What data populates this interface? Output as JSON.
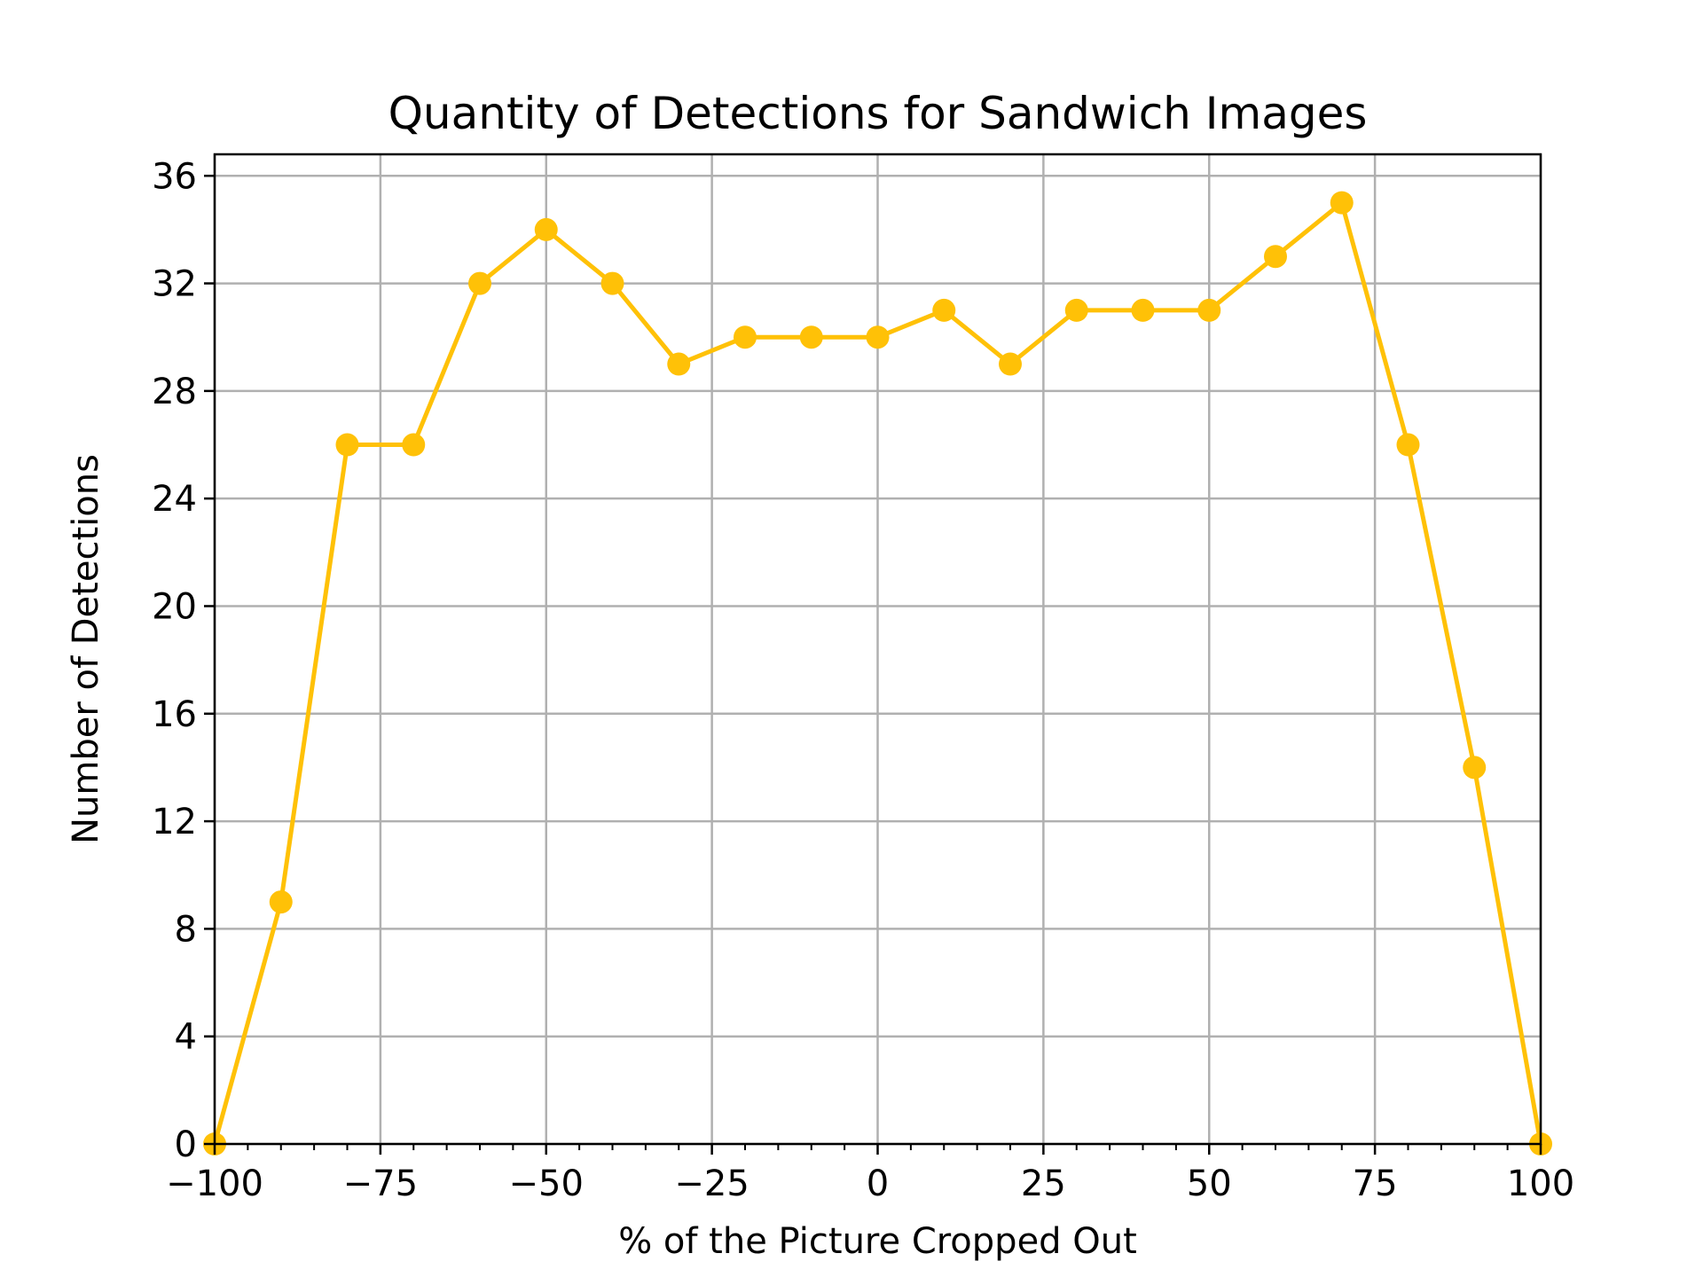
{
  "chart_data": {
    "type": "line",
    "title": "Quantity of Detections for Sandwich Images",
    "xlabel": "% of the Picture Cropped Out",
    "ylabel": "Number of Detections",
    "xlim": [
      -100,
      100
    ],
    "ylim": [
      0,
      36.8
    ],
    "x_ticks": [
      -100,
      -75,
      -50,
      -25,
      0,
      25,
      50,
      75,
      100
    ],
    "x_tick_labels": [
      "−100",
      "−75",
      "−50",
      "−25",
      "0",
      "25",
      "50",
      "75",
      "100"
    ],
    "y_ticks": [
      0,
      4,
      8,
      12,
      16,
      20,
      24,
      28,
      32,
      36
    ],
    "y_tick_labels": [
      "0",
      "4",
      "8",
      "12",
      "16",
      "20",
      "24",
      "28",
      "32",
      "36"
    ],
    "grid": true,
    "series": [
      {
        "color": "#ffc107",
        "marker": "circle",
        "x": [
          -100,
          -90,
          -80,
          -70,
          -60,
          -50,
          -40,
          -30,
          -20,
          -10,
          0,
          10,
          20,
          30,
          40,
          50,
          60,
          70,
          80,
          90,
          100
        ],
        "y": [
          0,
          9,
          26,
          26,
          32,
          34,
          32,
          29,
          30,
          30,
          30,
          31,
          29,
          31,
          31,
          31,
          33,
          35,
          26,
          14,
          0
        ]
      }
    ]
  }
}
